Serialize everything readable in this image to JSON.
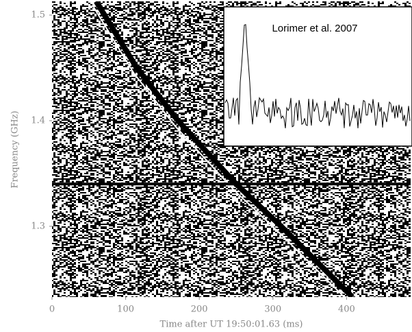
{
  "chart_data": {
    "type": "line",
    "annotation": "Lorimer et al. 2007",
    "x_label": "Time after UT 19:50:01.63 (ms)",
    "y_label": "Frequency (GHz)",
    "xlim": [
      0,
      487
    ],
    "ylim": [
      1.233,
      1.513
    ],
    "xticks": [
      0,
      100,
      200,
      300,
      400
    ],
    "yticks": [
      1.3,
      1.4,
      1.5
    ],
    "series": [
      {
        "color": "#000000",
        "x": [
          60,
          115,
          171,
          250,
          311,
          408
        ],
        "values": [
          1.513,
          1.45,
          1.4,
          1.34,
          1.3,
          1.233
        ]
      },
      {
        "color": "#000000",
        "x": [
          0,
          487
        ],
        "values": [
          1.34,
          1.34
        ]
      }
    ]
  }
}
